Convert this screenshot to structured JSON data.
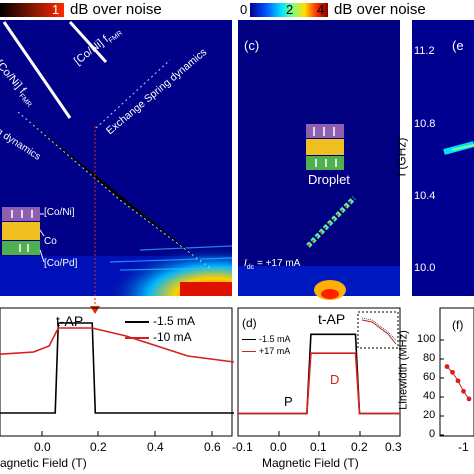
{
  "colorbar_left": {
    "max_label": "1",
    "title": "dB over noise",
    "colors": [
      "#ff2a00",
      "#000000"
    ]
  },
  "colorbar_c": {
    "ticks": [
      "0",
      "2",
      "4"
    ],
    "title": "dB over noise",
    "colors": [
      "#00008f",
      "#0050ff",
      "#00e0ff",
      "#80ff80",
      "#ffe000",
      "#ff3000",
      "#800000"
    ]
  },
  "panel_b": {
    "labels": {
      "fmr_1": "[Co/Ni] f",
      "fmr_1_sub": "FMR",
      "fmr_2": "[Co/Ni] f",
      "fmr_2_sub": "FMR",
      "exchange": "Exchange Spring dynamics",
      "dynamics": "g dynamics",
      "layer_1": "[Co/Ni]",
      "layer_2": "Co",
      "layer_3": "[Co/Pd]"
    }
  },
  "panel_c": {
    "label": "(c)",
    "droplet": "Droplet",
    "current": "I",
    "current_sub": "dc",
    "current_value": " = +17 mA"
  },
  "panel_e": {
    "label": "(e",
    "y_axis_label": "f (GHz)",
    "y_ticks": [
      "11.2",
      "10.8",
      "10.4",
      "10.0"
    ]
  },
  "panel_a_bottom": {
    "state_label": "t-AP",
    "legend": [
      "-1.5 mA",
      "-10 mA"
    ],
    "x_ticks": [
      "0.0",
      "0.2",
      "0.4",
      "0.6"
    ],
    "x_axis_label": "agnetic Field (T)"
  },
  "panel_d": {
    "label": "(d)",
    "state_label": "t-AP",
    "legend": [
      "-1.5 mA",
      "+17 mA"
    ],
    "p_label": "P",
    "d_label": "D",
    "x_ticks": [
      "-0.1",
      "0.0",
      "0.1",
      "0.2",
      "0.3"
    ],
    "x_axis_label": "Magnetic Field (T)"
  },
  "panel_f": {
    "label": "(f)",
    "y_axis_label": "Linewidth (MHz)",
    "y_ticks": [
      "100",
      "80",
      "60",
      "40",
      "20",
      "0"
    ],
    "x_tick": "-1"
  },
  "chart_data": [
    {
      "type": "line",
      "panel": "bottom-left",
      "xlabel": "agnetic Field (T)",
      "xlim": [
        -0.2,
        0.65
      ],
      "series": [
        {
          "name": "-1.5 mA",
          "color": "#000000",
          "x": [
            -0.2,
            0.07,
            0.08,
            0.19,
            0.2,
            0.65
          ],
          "y": [
            0.05,
            0.05,
            0.95,
            0.95,
            0.05,
            0.05
          ]
        },
        {
          "name": "-10 mA",
          "color": "#d62020",
          "x": [
            -0.2,
            0.0,
            0.05,
            0.08,
            0.19,
            0.3,
            0.4,
            0.5,
            0.65
          ],
          "y": [
            0.62,
            0.66,
            0.72,
            0.9,
            0.9,
            0.82,
            0.72,
            0.62,
            0.56
          ]
        }
      ]
    },
    {
      "type": "line",
      "panel": "d",
      "xlabel": "Magnetic Field (T)",
      "xlim": [
        -0.1,
        0.3
      ],
      "series": [
        {
          "name": "-1.5 mA",
          "color": "#000000",
          "x": [
            -0.1,
            0.07,
            0.08,
            0.19,
            0.2,
            0.3
          ],
          "y": [
            0.05,
            0.05,
            0.93,
            0.93,
            0.05,
            0.05
          ]
        },
        {
          "name": "+17 mA",
          "color": "#d62020",
          "x": [
            -0.1,
            0.07,
            0.08,
            0.19,
            0.2,
            0.3
          ],
          "y": [
            0.05,
            0.05,
            0.72,
            0.72,
            0.05,
            0.05
          ]
        }
      ]
    },
    {
      "type": "scatter",
      "panel": "f",
      "ylabel": "Linewidth (MHz)",
      "ylim": [
        0,
        100
      ],
      "series": [
        {
          "name": "",
          "color": "#d62020",
          "x": [
            0,
            1,
            2,
            3,
            4
          ],
          "y": [
            72,
            66,
            57,
            46,
            38
          ]
        }
      ]
    }
  ]
}
